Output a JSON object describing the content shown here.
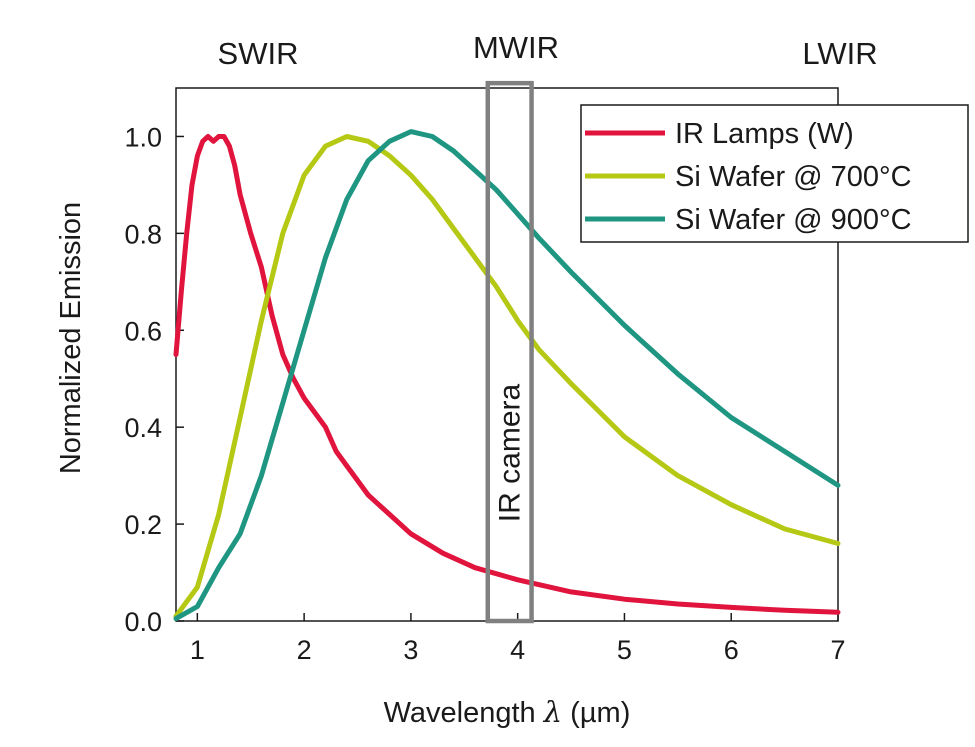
{
  "chart_data": {
    "type": "line",
    "xlabel_main": "Wavelength ",
    "xlabel_symbol": "λ",
    "xlabel_unit": " (µm)",
    "ylabel": "Normalized Emission",
    "xlim": [
      0.8,
      7
    ],
    "ylim": [
      0,
      1.1
    ],
    "xticks": [
      1,
      2,
      3,
      4,
      5,
      6,
      7
    ],
    "yticks": [
      0.0,
      0.2,
      0.4,
      0.6,
      0.8,
      1.0
    ],
    "xtick_labels": [
      "1",
      "2",
      "3",
      "4",
      "5",
      "6",
      "7"
    ],
    "ytick_labels": [
      "0.0",
      "0.2",
      "0.4",
      "0.6",
      "0.8",
      "1.0"
    ],
    "regions": [
      "SWIR",
      "MWIR",
      "LWIR"
    ],
    "annotation": {
      "label": "IR camera",
      "x_range": [
        3.72,
        4.13
      ],
      "y_range": [
        0,
        1.11
      ],
      "color": "#808080"
    },
    "series": [
      {
        "name": "IR Lamps (W)",
        "color": "#e0143c",
        "x": [
          0.8,
          0.85,
          0.9,
          0.95,
          1.0,
          1.05,
          1.1,
          1.15,
          1.2,
          1.25,
          1.3,
          1.35,
          1.4,
          1.5,
          1.6,
          1.7,
          1.8,
          1.9,
          2.0,
          2.1,
          2.2,
          2.3,
          2.4,
          2.6,
          2.8,
          3.0,
          3.3,
          3.6,
          4.0,
          4.5,
          5.0,
          5.5,
          6.0,
          6.5,
          7.0
        ],
        "values": [
          0.55,
          0.68,
          0.8,
          0.9,
          0.96,
          0.99,
          1.0,
          0.99,
          1.0,
          1.0,
          0.98,
          0.94,
          0.88,
          0.8,
          0.73,
          0.63,
          0.55,
          0.5,
          0.46,
          0.43,
          0.4,
          0.35,
          0.32,
          0.26,
          0.22,
          0.18,
          0.14,
          0.11,
          0.085,
          0.06,
          0.045,
          0.035,
          0.028,
          0.022,
          0.018
        ]
      },
      {
        "name": "Si Wafer @ 700°C",
        "color": "#b4c814",
        "x": [
          0.8,
          1.0,
          1.2,
          1.4,
          1.6,
          1.8,
          2.0,
          2.2,
          2.4,
          2.6,
          2.8,
          3.0,
          3.2,
          3.4,
          3.6,
          3.8,
          4.0,
          4.2,
          4.5,
          5.0,
          5.5,
          6.0,
          6.5,
          7.0
        ],
        "values": [
          0.01,
          0.07,
          0.22,
          0.42,
          0.62,
          0.8,
          0.92,
          0.98,
          1.0,
          0.99,
          0.96,
          0.92,
          0.87,
          0.81,
          0.75,
          0.69,
          0.62,
          0.56,
          0.49,
          0.38,
          0.3,
          0.24,
          0.19,
          0.16
        ]
      },
      {
        "name": "Si Wafer @ 900°C",
        "color": "#1e9682",
        "x": [
          0.8,
          1.0,
          1.2,
          1.4,
          1.6,
          1.8,
          2.0,
          2.2,
          2.4,
          2.6,
          2.8,
          3.0,
          3.2,
          3.4,
          3.6,
          3.8,
          4.0,
          4.2,
          4.5,
          5.0,
          5.5,
          6.0,
          6.5,
          7.0
        ],
        "values": [
          0.005,
          0.03,
          0.11,
          0.18,
          0.3,
          0.45,
          0.6,
          0.75,
          0.87,
          0.95,
          0.99,
          1.01,
          1.0,
          0.97,
          0.93,
          0.89,
          0.84,
          0.79,
          0.72,
          0.61,
          0.51,
          0.42,
          0.35,
          0.28
        ]
      }
    ]
  }
}
